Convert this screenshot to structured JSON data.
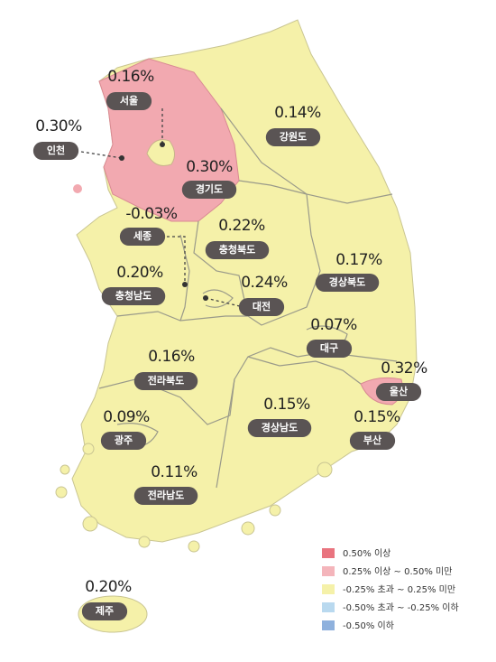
{
  "regions": [
    {
      "name": "서울",
      "value": "0.16%"
    },
    {
      "name": "인천",
      "value": "0.30%"
    },
    {
      "name": "경기도",
      "value": "0.30%"
    },
    {
      "name": "강원도",
      "value": "0.14%"
    },
    {
      "name": "세종",
      "value": "-0.03%"
    },
    {
      "name": "충청북도",
      "value": "0.22%"
    },
    {
      "name": "충청남도",
      "value": "0.20%"
    },
    {
      "name": "대전",
      "value": "0.24%"
    },
    {
      "name": "경상북도",
      "value": "0.17%"
    },
    {
      "name": "대구",
      "value": "0.07%"
    },
    {
      "name": "울산",
      "value": "0.32%"
    },
    {
      "name": "전라북도",
      "value": "0.16%"
    },
    {
      "name": "경상남도",
      "value": "0.15%"
    },
    {
      "name": "부산",
      "value": "0.15%"
    },
    {
      "name": "광주",
      "value": "0.09%"
    },
    {
      "name": "전라남도",
      "value": "0.11%"
    },
    {
      "name": "제주",
      "value": "0.20%"
    }
  ],
  "legend": [
    "0.50% 이상",
    "0.25% 이상 ~ 0.50% 미만",
    "-0.25% 초과 ~ 0.25% 미만",
    "-0.50% 초과 ~ -0.25% 이하",
    "-0.50% 이하"
  ]
}
